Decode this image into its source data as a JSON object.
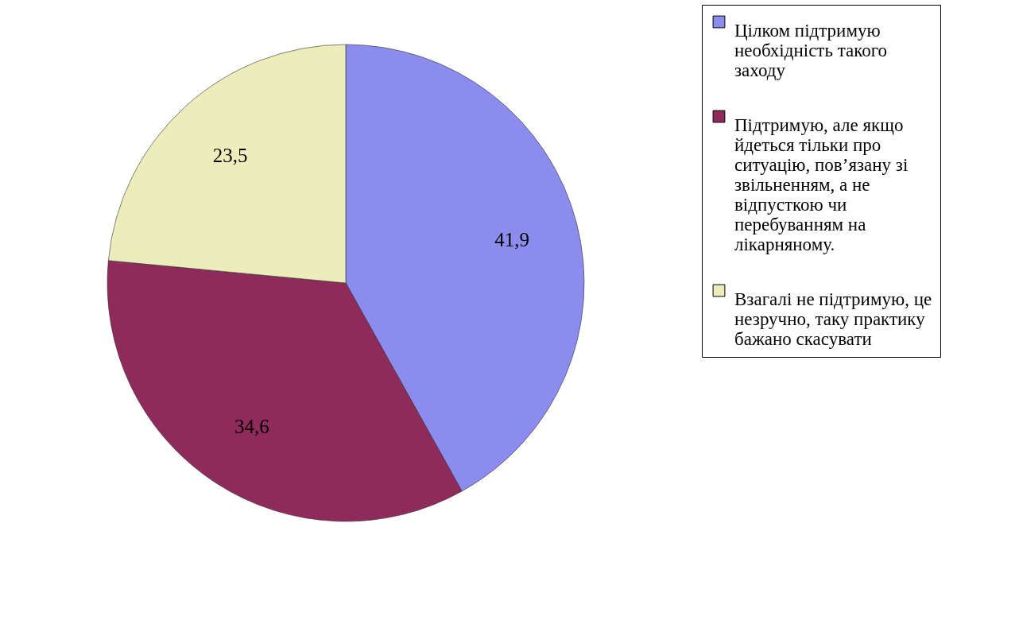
{
  "chart_data": {
    "type": "pie",
    "categories": [
      "Цілком підтримую необхідність такого заходу",
      "Підтримую, але якщо йдеться тільки про ситуацію, пов’язану зі звільненням, а не відпусткою чи перебуванням на лікарняному.",
      "Взагалі не підтримую, це незручно, таку практику бажано скасувати"
    ],
    "values": [
      41.9,
      34.6,
      23.5
    ],
    "colors": [
      "#8c8cee",
      "#8e2b5b",
      "#ededbb"
    ],
    "value_labels": [
      "41,9",
      "34,6",
      "23,5"
    ],
    "legend": "right"
  }
}
